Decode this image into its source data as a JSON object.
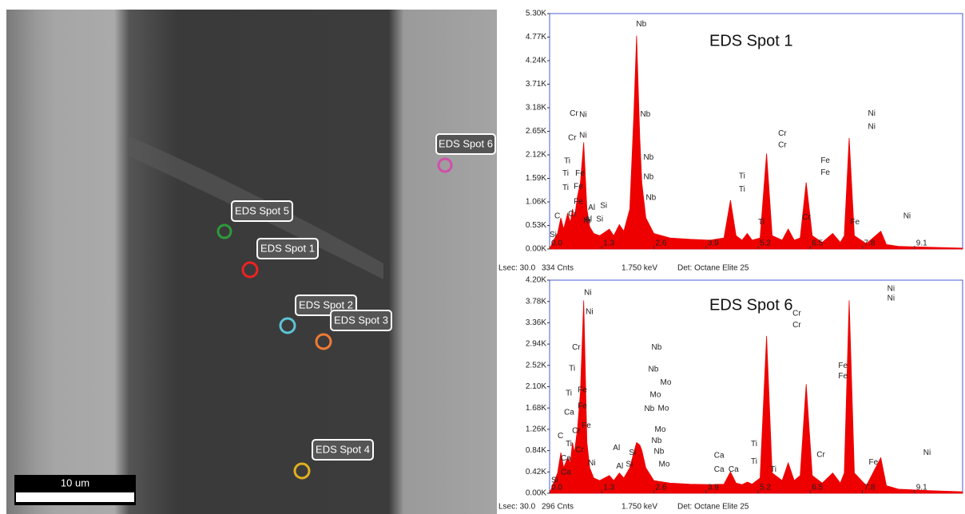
{
  "image": {
    "spots": [
      "EDS Spot 5",
      "EDS Spot 1",
      "EDS Spot 2",
      "EDS Spot 3",
      "EDS Spot 4",
      "EDS Spot 6"
    ],
    "scale_bar": "10 um"
  },
  "chart_data": [
    {
      "type": "area",
      "title": "EDS Spot 1",
      "color": "#ee0000",
      "x": [
        0,
        0.1,
        0.2,
        0.28,
        0.35,
        0.45,
        0.52,
        0.57,
        0.62,
        0.7,
        0.77,
        0.85,
        0.93,
        1.0,
        1.1,
        1.25,
        1.49,
        1.6,
        1.74,
        1.85,
        2.0,
        2.1,
        2.17,
        2.25,
        2.3,
        2.4,
        2.6,
        3.0,
        3.5,
        4.0,
        4.35,
        4.51,
        4.65,
        4.8,
        4.93,
        5.05,
        5.25,
        5.41,
        5.55,
        5.8,
        5.95,
        6.1,
        6.25,
        6.4,
        6.55,
        6.8,
        7.06,
        7.25,
        7.35,
        7.47,
        7.6,
        7.9,
        8.26,
        8.4,
        8.7,
        9.5,
        10.3
      ],
      "values": [
        0,
        200,
        350,
        700,
        450,
        800,
        600,
        900,
        700,
        1200,
        1500,
        2400,
        900,
        500,
        350,
        300,
        450,
        300,
        550,
        400,
        900,
        3000,
        4800,
        2500,
        1500,
        700,
        350,
        250,
        220,
        200,
        250,
        1100,
        300,
        200,
        350,
        200,
        250,
        2150,
        300,
        200,
        450,
        200,
        250,
        1500,
        300,
        150,
        350,
        150,
        300,
        2500,
        300,
        120,
        400,
        100,
        60,
        40,
        20
      ],
      "xlim": [
        0,
        10.3
      ],
      "xticks": [
        {
          "value": 0,
          "label": "0.0"
        },
        1.3,
        2.6,
        3.9,
        5.2,
        6.5,
        7.8,
        9.1
      ],
      "ylim": [
        0,
        5300
      ],
      "yticks": [
        {
          "value": 0,
          "label": "0.00K"
        },
        {
          "value": 530,
          "label": "0.53K"
        },
        {
          "value": 1060,
          "label": "1.06K"
        },
        {
          "value": 1590,
          "label": "1.59K"
        },
        {
          "value": 2120,
          "label": "2.12K"
        },
        {
          "value": 2650,
          "label": "2.65K"
        },
        {
          "value": 3180,
          "label": "3.18K"
        },
        {
          "value": 3710,
          "label": "3.71K"
        },
        {
          "value": 4240,
          "label": "4.24K"
        },
        {
          "value": 4770,
          "label": "4.77K"
        },
        {
          "value": 5300,
          "label": "5.30K"
        }
      ],
      "annotations": [
        {
          "text": "Nb",
          "x": 2.16,
          "y": 5060
        },
        {
          "text": "Cr",
          "x": 0.5,
          "y": 3050
        },
        {
          "text": "Ni",
          "x": 0.74,
          "y": 3020
        },
        {
          "text": "Cr",
          "x": 0.46,
          "y": 2500
        },
        {
          "text": "Ni",
          "x": 0.74,
          "y": 2550
        },
        {
          "text": "Ti",
          "x": 0.36,
          "y": 1980
        },
        {
          "text": "Ti",
          "x": 0.32,
          "y": 1700
        },
        {
          "text": "Fe",
          "x": 0.64,
          "y": 1700
        },
        {
          "text": "Ti",
          "x": 0.32,
          "y": 1380
        },
        {
          "text": "Fe",
          "x": 0.6,
          "y": 1400
        },
        {
          "text": "Fe",
          "x": 0.6,
          "y": 1060
        },
        {
          "text": "Cr",
          "x": 0.46,
          "y": 780
        },
        {
          "text": "C",
          "x": 0.12,
          "y": 740
        },
        {
          "text": "Ni",
          "x": 0.84,
          "y": 630
        },
        {
          "text": "Al",
          "x": 0.96,
          "y": 930
        },
        {
          "text": "Si",
          "x": 1.26,
          "y": 970
        },
        {
          "text": "Al",
          "x": 0.88,
          "y": 670
        },
        {
          "text": "Si",
          "x": 1.16,
          "y": 670
        },
        {
          "text": "Si",
          "x": 0.0,
          "y": 320
        },
        {
          "text": "Nb",
          "x": 2.26,
          "y": 3030
        },
        {
          "text": "Nb",
          "x": 2.34,
          "y": 2060
        },
        {
          "text": "Nb",
          "x": 2.34,
          "y": 1620
        },
        {
          "text": "Nb",
          "x": 2.4,
          "y": 1150
        },
        {
          "text": "Ti",
          "x": 4.72,
          "y": 1640
        },
        {
          "text": "Ti",
          "x": 4.72,
          "y": 1340
        },
        {
          "text": "Ti",
          "x": 5.2,
          "y": 600
        },
        {
          "text": "Cr",
          "x": 5.7,
          "y": 2600
        },
        {
          "text": "Cr",
          "x": 5.7,
          "y": 2340
        },
        {
          "text": "Cr",
          "x": 6.3,
          "y": 710
        },
        {
          "text": "Fe",
          "x": 6.76,
          "y": 1990
        },
        {
          "text": "Fe",
          "x": 6.76,
          "y": 1720
        },
        {
          "text": "Fe",
          "x": 7.5,
          "y": 600
        },
        {
          "text": "Ni",
          "x": 7.94,
          "y": 3050
        },
        {
          "text": "Ni",
          "x": 7.94,
          "y": 2750
        },
        {
          "text": "Ni",
          "x": 8.82,
          "y": 740
        }
      ],
      "footer": [
        "Lsec: 30.0",
        "334 Cnts",
        "1.750 keV",
        "Det: Octane Elite 25"
      ]
    },
    {
      "type": "area",
      "title": "EDS Spot 6",
      "color": "#ee0000",
      "x": [
        0,
        0.1,
        0.2,
        0.28,
        0.35,
        0.45,
        0.52,
        0.57,
        0.62,
        0.7,
        0.77,
        0.85,
        0.93,
        1.0,
        1.1,
        1.25,
        1.49,
        1.6,
        1.74,
        1.85,
        2.0,
        2.1,
        2.17,
        2.25,
        2.3,
        2.4,
        2.6,
        3.0,
        3.5,
        4.0,
        4.35,
        4.51,
        4.65,
        4.8,
        4.93,
        5.05,
        5.25,
        5.41,
        5.55,
        5.8,
        5.95,
        6.1,
        6.25,
        6.4,
        6.55,
        6.8,
        7.06,
        7.25,
        7.35,
        7.47,
        7.6,
        7.9,
        8.26,
        8.4,
        8.7,
        9.5,
        10.3
      ],
      "values": [
        0,
        200,
        400,
        800,
        500,
        700,
        600,
        1000,
        800,
        1300,
        2000,
        3800,
        1000,
        500,
        300,
        250,
        350,
        250,
        400,
        300,
        500,
        800,
        1000,
        950,
        850,
        500,
        250,
        200,
        180,
        170,
        180,
        420,
        200,
        170,
        220,
        180,
        300,
        3100,
        400,
        250,
        600,
        250,
        350,
        2150,
        350,
        200,
        400,
        200,
        400,
        3800,
        400,
        150,
        700,
        150,
        80,
        50,
        30
      ],
      "xlim": [
        0,
        10.3
      ],
      "xticks": [
        {
          "value": 0,
          "label": "0.0"
        },
        1.3,
        2.6,
        3.9,
        5.2,
        6.5,
        7.8,
        9.1
      ],
      "ylim": [
        0,
        4200
      ],
      "yticks": [
        {
          "value": 0,
          "label": "0.00K"
        },
        {
          "value": 420,
          "label": "0.42K"
        },
        {
          "value": 840,
          "label": "0.84K"
        },
        {
          "value": 1260,
          "label": "1.26K"
        },
        {
          "value": 1680,
          "label": "1.68K"
        },
        {
          "value": 2100,
          "label": "2.10K"
        },
        {
          "value": 2520,
          "label": "2.52K"
        },
        {
          "value": 2940,
          "label": "2.94K"
        },
        {
          "value": 3360,
          "label": "3.36K"
        },
        {
          "value": 3780,
          "label": "3.78K"
        },
        {
          "value": 4200,
          "label": "4.20K"
        }
      ],
      "annotations": [
        {
          "text": "Ni",
          "x": 0.86,
          "y": 3950
        },
        {
          "text": "Ni",
          "x": 0.9,
          "y": 3570
        },
        {
          "text": "Cr",
          "x": 0.56,
          "y": 2870
        },
        {
          "text": "Ti",
          "x": 0.48,
          "y": 2460
        },
        {
          "text": "Ti",
          "x": 0.4,
          "y": 1970
        },
        {
          "text": "Fe",
          "x": 0.7,
          "y": 2030
        },
        {
          "text": "Ca",
          "x": 0.36,
          "y": 1590
        },
        {
          "text": "Fe",
          "x": 0.7,
          "y": 1720
        },
        {
          "text": "Cr",
          "x": 0.56,
          "y": 1230
        },
        {
          "text": "Fe",
          "x": 0.8,
          "y": 1330
        },
        {
          "text": "C",
          "x": 0.2,
          "y": 1130
        },
        {
          "text": "Ti",
          "x": 0.4,
          "y": 970
        },
        {
          "text": "Cr",
          "x": 0.64,
          "y": 850
        },
        {
          "text": "Ca",
          "x": 0.28,
          "y": 690
        },
        {
          "text": "Ni",
          "x": 0.96,
          "y": 590
        },
        {
          "text": "Ca",
          "x": 0.28,
          "y": 410
        },
        {
          "text": "Si",
          "x": 0.04,
          "y": 250
        },
        {
          "text": "Al",
          "x": 1.58,
          "y": 890
        },
        {
          "text": "Si",
          "x": 1.98,
          "y": 800
        },
        {
          "text": "Al",
          "x": 1.66,
          "y": 530
        },
        {
          "text": "Si",
          "x": 1.9,
          "y": 570
        },
        {
          "text": "Nb",
          "x": 2.54,
          "y": 2870
        },
        {
          "text": "Nb",
          "x": 2.46,
          "y": 2440
        },
        {
          "text": "Mo",
          "x": 2.76,
          "y": 2180
        },
        {
          "text": "Mo",
          "x": 2.5,
          "y": 1940
        },
        {
          "text": "Nb",
          "x": 2.36,
          "y": 1660
        },
        {
          "text": "Mo",
          "x": 2.7,
          "y": 1670
        },
        {
          "text": "Mo",
          "x": 2.62,
          "y": 1250
        },
        {
          "text": "Nb",
          "x": 2.54,
          "y": 1030
        },
        {
          "text": "Nb",
          "x": 2.6,
          "y": 820
        },
        {
          "text": "Mo",
          "x": 2.72,
          "y": 570
        },
        {
          "text": "Ca",
          "x": 4.1,
          "y": 740
        },
        {
          "text": "Ca",
          "x": 4.1,
          "y": 470
        },
        {
          "text": "Ca",
          "x": 4.46,
          "y": 470
        },
        {
          "text": "Ti",
          "x": 5.02,
          "y": 970
        },
        {
          "text": "Ti",
          "x": 5.02,
          "y": 620
        },
        {
          "text": "Ti",
          "x": 5.5,
          "y": 470
        },
        {
          "text": "Cr",
          "x": 6.06,
          "y": 3540
        },
        {
          "text": "Cr",
          "x": 6.06,
          "y": 3310
        },
        {
          "text": "Cr",
          "x": 6.66,
          "y": 760
        },
        {
          "text": "Fe",
          "x": 7.2,
          "y": 2510
        },
        {
          "text": "Fe",
          "x": 7.2,
          "y": 2310
        },
        {
          "text": "Fe",
          "x": 7.96,
          "y": 610
        },
        {
          "text": "Ni",
          "x": 8.42,
          "y": 4030
        },
        {
          "text": "Ni",
          "x": 8.42,
          "y": 3840
        },
        {
          "text": "Ni",
          "x": 9.32,
          "y": 800
        }
      ],
      "footer": [
        "Lsec: 30.0",
        "296 Cnts",
        "1.750 keV",
        "Det: Octane Elite 25"
      ]
    }
  ]
}
